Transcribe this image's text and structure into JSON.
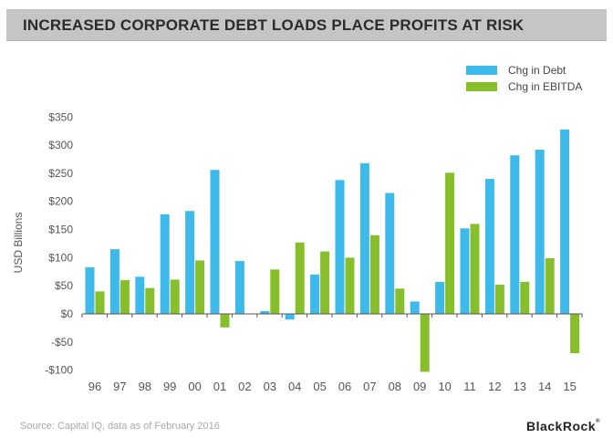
{
  "header": {
    "title": "INCREASED CORPORATE DEBT LOADS PLACE PROFITS AT RISK"
  },
  "footer": {
    "source": "Source: Capital IQ, data as of February 2016",
    "brand": "BlackRock",
    "brand_mark": "®"
  },
  "chart_data": {
    "type": "bar",
    "title": "INCREASED CORPORATE DEBT LOADS PLACE PROFITS AT RISK",
    "xlabel": "",
    "ylabel": "USD Billions",
    "categories": [
      "96",
      "97",
      "98",
      "99",
      "00",
      "01",
      "02",
      "03",
      "04",
      "05",
      "06",
      "07",
      "08",
      "09",
      "10",
      "11",
      "12",
      "13",
      "14",
      "15"
    ],
    "series": [
      {
        "name": "Chg in Debt",
        "color": "#3db9ea",
        "values": [
          83,
          115,
          66,
          177,
          183,
          256,
          94,
          5,
          -10,
          70,
          238,
          268,
          215,
          22,
          57,
          152,
          240,
          282,
          292,
          328
        ]
      },
      {
        "name": "Chg in EBITDA",
        "color": "#86bf2b",
        "values": [
          40,
          60,
          46,
          61,
          95,
          -24,
          0,
          79,
          127,
          111,
          100,
          140,
          45,
          -103,
          251,
          160,
          52,
          57,
          99,
          -70
        ]
      }
    ],
    "ylim": [
      -100,
      350
    ],
    "yticks": [
      -100,
      -50,
      0,
      50,
      100,
      150,
      200,
      250,
      300,
      350
    ],
    "ytick_labels": [
      "-$100",
      "-$50",
      "$0",
      "$50",
      "$100",
      "$150",
      "$200",
      "$250",
      "$300",
      "$350"
    ],
    "grid": false,
    "legend_position": "top-right"
  }
}
